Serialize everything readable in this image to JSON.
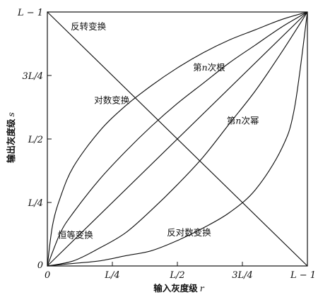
{
  "chart_data": {
    "type": "line",
    "title": "",
    "xlabel": "输入灰度级 r",
    "xlabel_text": "输入灰度级",
    "xlabel_var": "r",
    "ylabel": "输出灰度级 s",
    "ylabel_text": "输出灰度级",
    "ylabel_var": "s",
    "xlim": [
      0,
      1
    ],
    "ylim": [
      0,
      1
    ],
    "grid": false,
    "legend": "none",
    "x_ticks": [
      {
        "value": 0,
        "label": "0"
      },
      {
        "value": 0.25,
        "label": "L/4"
      },
      {
        "value": 0.5,
        "label": "L/2"
      },
      {
        "value": 0.75,
        "label": "3L/4"
      },
      {
        "value": 1,
        "label": "L − 1"
      }
    ],
    "y_ticks": [
      {
        "value": 0,
        "label": "0"
      },
      {
        "value": 0.25,
        "label": "L/4"
      },
      {
        "value": 0.5,
        "label": "L/2"
      },
      {
        "value": 0.75,
        "label": "3L/4"
      },
      {
        "value": 1,
        "label": "L − 1"
      }
    ],
    "series": [
      {
        "key": "negative",
        "name": "反转变换",
        "x": [
          0,
          1
        ],
        "y": [
          1,
          0
        ],
        "label_anchor": [
          0.09,
          0.93
        ]
      },
      {
        "key": "log",
        "name": "对数变换",
        "x": [
          0,
          0.02,
          0.05,
          0.1,
          0.2,
          0.3,
          0.4,
          0.5,
          0.6,
          0.7,
          0.8,
          0.9,
          1
        ],
        "y": [
          0,
          0.16,
          0.27,
          0.39,
          0.53,
          0.63,
          0.71,
          0.78,
          0.84,
          0.89,
          0.93,
          0.97,
          1
        ],
        "label_anchor": [
          0.18,
          0.64
        ]
      },
      {
        "key": "nth_root",
        "name": "第n次根",
        "name_prefix": "第",
        "name_var": "n",
        "name_suffix": "次根",
        "x": [
          0,
          0.05,
          0.1,
          0.2,
          0.3,
          0.4,
          0.5,
          0.6,
          0.7,
          0.8,
          0.9,
          1
        ],
        "y": [
          0,
          0.13,
          0.21,
          0.34,
          0.45,
          0.55,
          0.64,
          0.72,
          0.8,
          0.87,
          0.94,
          1
        ],
        "label_anchor": [
          0.56,
          0.77
        ]
      },
      {
        "key": "identity",
        "name": "恒等变换",
        "x": [
          0,
          1
        ],
        "y": [
          0,
          1
        ],
        "label_anchor": [
          0.04,
          0.11
        ]
      },
      {
        "key": "nth_power",
        "name": "第n次幂",
        "name_prefix": "第",
        "name_var": "n",
        "name_suffix": "次幂",
        "x": [
          0,
          0.1,
          0.2,
          0.3,
          0.4,
          0.5,
          0.6,
          0.7,
          0.8,
          0.9,
          1
        ],
        "y": [
          0,
          0.02,
          0.07,
          0.13,
          0.22,
          0.32,
          0.43,
          0.56,
          0.69,
          0.84,
          1
        ],
        "label_anchor": [
          0.69,
          0.56
        ]
      },
      {
        "key": "inverse_log",
        "name": "反对数变换",
        "x": [
          0,
          0.1,
          0.2,
          0.3,
          0.4,
          0.5,
          0.6,
          0.7,
          0.8,
          0.9,
          0.95,
          1
        ],
        "y": [
          0,
          0.01,
          0.02,
          0.04,
          0.06,
          0.1,
          0.15,
          0.21,
          0.3,
          0.46,
          0.62,
          1
        ],
        "label_anchor": [
          0.46,
          0.12
        ]
      }
    ]
  }
}
